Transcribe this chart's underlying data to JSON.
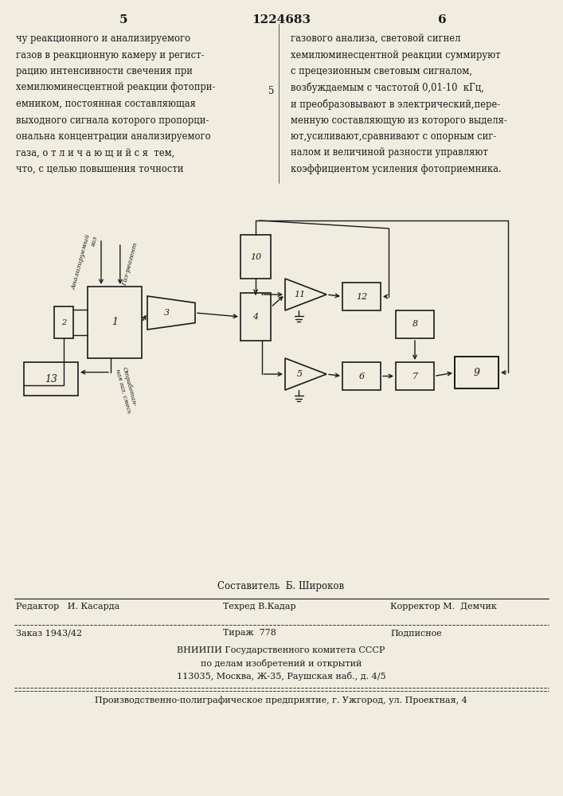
{
  "page_num_left": "5",
  "patent_num": "1224683",
  "page_num_right": "6",
  "left_text": [
    "чу реакционного и анализируемого",
    "газов в реакционную камеру и регист-",
    "рацию интенсивности свечения при",
    "хемилюминесцентной реакции фотопри-",
    "емником, постоянная составляющая",
    "выходного сигнала которого пропорци-",
    "ональна концентрации анализируемого",
    "газа, о т л и ч а ю щ и й с я  тем,",
    "что, с целью повышения точности"
  ],
  "right_text_num": "5",
  "right_text": [
    "газового анализа, световой сигнел",
    "хемилюминесцентной реакции суммируют",
    "с прецезионным световым сигналом,",
    "возбуждаемым с частотой 0,01-10  кГц,",
    "и преобразовывают в электрический,пере-",
    "менную составляющую из которого выделя-",
    "ют,усиливают,сравнивают с опорным сиг-",
    "налом и величиной разности управляют",
    "коэффициентом усиления фотоприемника."
  ],
  "sestavitel_label": "Составитель  Б. Широков",
  "tehred_label": "Техред В.Кадар",
  "redaktor_label": "Редактор   И. Касарда",
  "korrektor_label": "Корректор М.  Демчик",
  "zakaz_label": "Заказ 1943/42",
  "tirazh_label": "Тираж  778",
  "podpisnoe_label": "Подписное",
  "vniip1": "ВНИИПИ Государственного комитета СССР",
  "vniip2": "по делам изобретений и открытий",
  "vniip3": "113035, Москва, Ж-35, Раушская наб., д. 4/5",
  "printer": "Производственно-полиграфическое предприятие, г. Ужгород, ул. Проектная, 4",
  "bg_color": "#f0ece0",
  "text_color": "#1a1a1a"
}
